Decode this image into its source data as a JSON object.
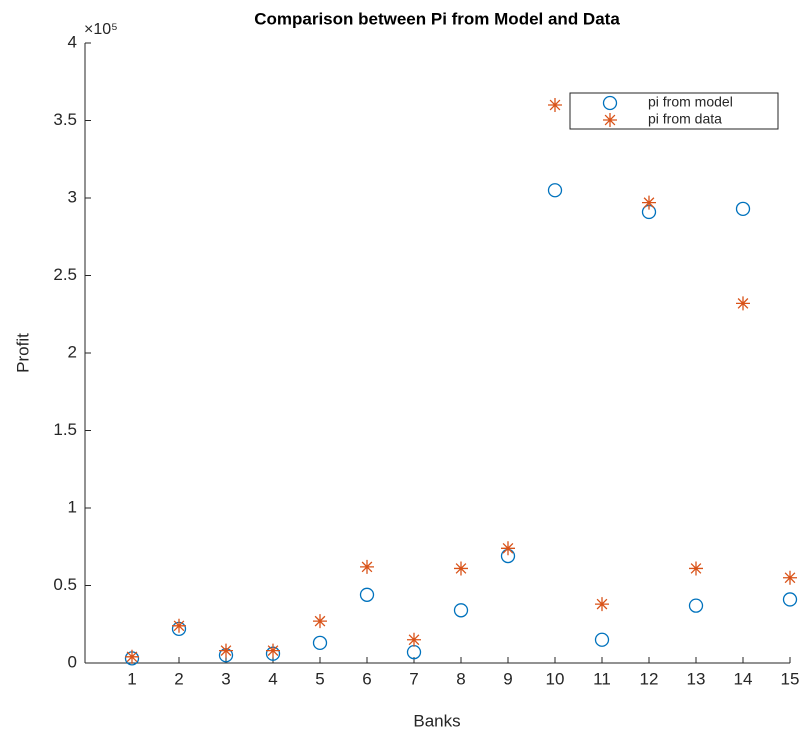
{
  "chart_data": {
    "type": "scatter",
    "title": "Comparison between Pi from Model and Data",
    "x_label": "Banks",
    "y_label": "Profit",
    "y_multiplier": "×10⁵",
    "x": [
      1,
      2,
      3,
      4,
      5,
      6,
      7,
      8,
      9,
      10,
      11,
      12,
      13,
      14,
      15
    ],
    "series": [
      {
        "name": "pi from model",
        "marker": "circle",
        "color": "#0072BD",
        "values": [
          3000,
          22000,
          5000,
          6000,
          13000,
          44000,
          7000,
          34000,
          69000,
          305000,
          15000,
          291000,
          37000,
          293000,
          41000
        ]
      },
      {
        "name": "pi from data",
        "marker": "asterisk",
        "color": "#D95319",
        "values": [
          4000,
          24000,
          8000,
          8000,
          27000,
          62000,
          15000,
          61000,
          74000,
          360000,
          38000,
          297000,
          61000,
          232000,
          55000
        ]
      }
    ],
    "xlim": [
      0,
      15
    ],
    "xticks": [
      1,
      2,
      3,
      4,
      5,
      6,
      7,
      8,
      9,
      10,
      11,
      12,
      13,
      14,
      15
    ],
    "ylim": [
      0,
      400000
    ],
    "yticks": [
      0,
      {
        "value": 50000,
        "label": "0.5"
      },
      {
        "value": 100000,
        "label": "1"
      },
      {
        "value": 150000,
        "label": "1.5"
      },
      {
        "value": 200000,
        "label": "2"
      },
      {
        "value": 250000,
        "label": "2.5"
      },
      {
        "value": 300000,
        "label": "3"
      },
      {
        "value": 350000,
        "label": "3.5"
      },
      {
        "value": 400000,
        "label": "4"
      }
    ],
    "legend": "top-right"
  }
}
